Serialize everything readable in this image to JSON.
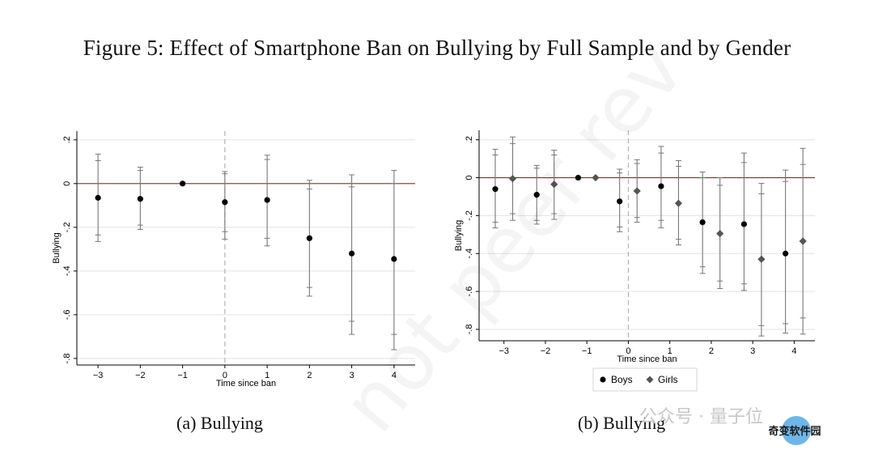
{
  "figure_title": "Figure 5: Effect of Smartphone Ban on Bullying by Full Sample and by Gender",
  "captions": {
    "a": "(a) Bullying",
    "b": "(b) Bullying"
  },
  "watermarks": {
    "wechat_text": "公众号 · 量子位",
    "logo_text": "奇变软件园"
  },
  "colors": {
    "zero_line": "#8b2a2a",
    "grid": "#e3e3e3",
    "ci": "#777777",
    "boys": "#000000",
    "girls": "#555555",
    "event_line": "#b4b4b4"
  },
  "chart_data": [
    {
      "type": "scatter",
      "title": "",
      "xlabel": "Time since ban",
      "ylabel": "Bullying",
      "xlim": [
        -3.5,
        4.5
      ],
      "ylim": [
        -0.83,
        0.24
      ],
      "xticks": [
        -3,
        -2,
        -1,
        0,
        1,
        2,
        3,
        4
      ],
      "xtick_labels": [
        "−3",
        "−2",
        "−1",
        "0",
        "1",
        "2",
        "3",
        "4"
      ],
      "yticks": [
        0.2,
        0,
        -0.2,
        -0.4,
        -0.6,
        -0.8
      ],
      "ytick_labels": [
        ".2",
        "0",
        "-.2",
        "-.4",
        "-.6",
        "-.8"
      ],
      "event_line_x": 0,
      "grid": true,
      "legend": null,
      "series": [
        {
          "marker": "circle",
          "points": [
            {
              "x": -3,
              "y": -0.065,
              "ci95": [
                -0.265,
                0.135
              ],
              "ci90": [
                -0.235,
                0.105
              ]
            },
            {
              "x": -2,
              "y": -0.07,
              "ci95": [
                -0.21,
                0.075
              ],
              "ci90": [
                -0.19,
                0.06
              ]
            },
            {
              "x": -1,
              "y": 0.0
            },
            {
              "x": 0,
              "y": -0.085,
              "ci95": [
                -0.255,
                0.055
              ],
              "ci90": [
                -0.22,
                0.045
              ]
            },
            {
              "x": 1,
              "y": -0.075,
              "ci95": [
                -0.285,
                0.13
              ],
              "ci90": [
                -0.25,
                0.11
              ]
            },
            {
              "x": 2,
              "y": -0.25,
              "ci95": [
                -0.515,
                0.015
              ],
              "ci90": [
                -0.475,
                -0.025
              ]
            },
            {
              "x": 3,
              "y": -0.32,
              "ci95": [
                -0.69,
                0.04
              ],
              "ci90": [
                -0.63,
                -0.015
              ]
            },
            {
              "x": 4,
              "y": -0.345,
              "ci95": [
                -0.76,
                0.06
              ],
              "ci90": [
                -0.69,
                0.0
              ]
            }
          ]
        }
      ]
    },
    {
      "type": "scatter",
      "title": "",
      "xlabel": "Time since ban",
      "ylabel": "Bullying",
      "xlim": [
        -3.6,
        4.5
      ],
      "ylim": [
        -0.86,
        0.25
      ],
      "xticks": [
        -3,
        -2,
        -1,
        0,
        1,
        2,
        3,
        4
      ],
      "xtick_labels": [
        "−3",
        "−2",
        "−1",
        "0",
        "1",
        "2",
        "3",
        "4"
      ],
      "yticks": [
        0.2,
        0,
        -0.2,
        -0.4,
        -0.6,
        -0.8
      ],
      "ytick_labels": [
        ".2",
        "0",
        "-.2",
        "-.4",
        "-.6",
        "-.8"
      ],
      "event_line_x": 0,
      "grid": true,
      "legend": "bottom",
      "series": [
        {
          "name": "Boys",
          "marker": "circle",
          "points": [
            {
              "x": -3,
              "y": -0.06,
              "ci95": [
                -0.265,
                0.15
              ],
              "ci90": [
                -0.235,
                0.12
              ]
            },
            {
              "x": -2,
              "y": -0.09,
              "ci95": [
                -0.245,
                0.065
              ],
              "ci90": [
                -0.225,
                0.05
              ]
            },
            {
              "x": -1,
              "y": 0.0
            },
            {
              "x": 0,
              "y": -0.125,
              "ci95": [
                -0.285,
                0.045
              ],
              "ci90": [
                -0.26,
                0.025
              ]
            },
            {
              "x": 1,
              "y": -0.045,
              "ci95": [
                -0.265,
                0.165
              ],
              "ci90": [
                -0.225,
                0.13
              ]
            },
            {
              "x": 2,
              "y": -0.235,
              "ci95": [
                -0.505,
                0.03
              ],
              "ci90": [
                -0.47,
                0.0
              ]
            },
            {
              "x": 3,
              "y": -0.245,
              "ci95": [
                -0.595,
                0.13
              ],
              "ci90": [
                -0.56,
                0.08
              ]
            },
            {
              "x": 4,
              "y": -0.4,
              "ci95": [
                -0.82,
                0.04
              ],
              "ci90": [
                -0.77,
                -0.02
              ]
            }
          ]
        },
        {
          "name": "Girls",
          "marker": "diamond",
          "points": [
            {
              "x": -3,
              "y": -0.005,
              "ci95": [
                -0.225,
                0.215
              ],
              "ci90": [
                -0.19,
                0.18
              ]
            },
            {
              "x": -2,
              "y": -0.035,
              "ci95": [
                -0.22,
                0.145
              ],
              "ci90": [
                -0.19,
                0.12
              ]
            },
            {
              "x": -1,
              "y": 0.0
            },
            {
              "x": 0,
              "y": -0.07,
              "ci95": [
                -0.235,
                0.095
              ],
              "ci90": [
                -0.21,
                0.075
              ]
            },
            {
              "x": 1,
              "y": -0.135,
              "ci95": [
                -0.355,
                0.09
              ],
              "ci90": [
                -0.325,
                0.06
              ]
            },
            {
              "x": 2,
              "y": -0.295,
              "ci95": [
                -0.585,
                0.0
              ],
              "ci90": [
                -0.545,
                -0.04
              ]
            },
            {
              "x": 3,
              "y": -0.43,
              "ci95": [
                -0.835,
                -0.03
              ],
              "ci90": [
                -0.78,
                -0.085
              ]
            },
            {
              "x": 4,
              "y": -0.335,
              "ci95": [
                -0.825,
                0.155
              ],
              "ci90": [
                -0.74,
                0.07
              ]
            }
          ]
        }
      ]
    }
  ]
}
